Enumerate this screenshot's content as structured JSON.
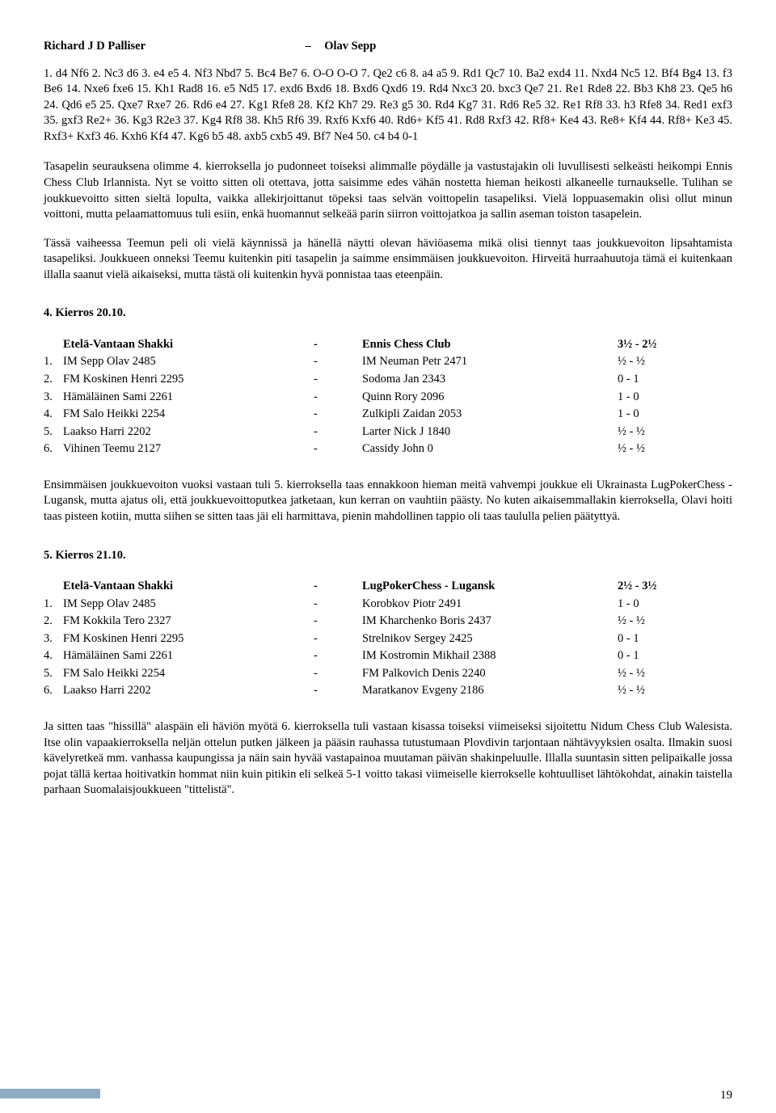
{
  "pgn": {
    "white": "Richard J D Palliser",
    "dash": "–",
    "black": "Olav Sepp",
    "moves": "1. d4 Nf6 2. Nc3 d6 3. e4 e5 4. Nf3 Nbd7 5. Bc4 Be7 6. O-O O-O 7. Qe2 c6 8. a4 a5 9. Rd1 Qc7 10. Ba2 exd4 11. Nxd4 Nc5 12. Bf4 Bg4 13. f3 Be6 14. Nxe6 fxe6 15. Kh1 Rad8 16. e5 Nd5 17. exd6 Bxd6 18. Bxd6 Qxd6 19. Rd4 Nxc3 20. bxc3 Qe7 21. Re1 Rde8 22. Bb3 Kh8 23. Qe5 h6 24. Qd6 e5 25. Qxe7 Rxe7 26. Rd6 e4 27. Kg1 Rfe8 28. Kf2 Kh7 29. Re3 g5 30. Rd4 Kg7 31. Rd6 Re5 32. Re1 Rf8 33. h3 Rfe8 34. Red1 exf3 35. gxf3 Re2+ 36. Kg3 R2e3 37. Kg4 Rf8 38. Kh5 Rf6 39. Rxf6 Kxf6 40. Rd6+ Kf5 41. Rd8 Rxf3 42. Rf8+ Ke4 43. Re8+ Kf4 44. Rf8+ Ke3 45. Rxf3+ Kxf3 46. Kxh6 Kf4 47. Kg6 b5 48. axb5 cxb5 49. Bf7 Ne4 50. c4 b4 0-1"
  },
  "commentary1": "Tasapelin seurauksena olimme 4. kierroksella jo pudonneet toiseksi alimmalle pöydälle ja vastustajakin oli luvullisesti selkeästi heikompi Ennis Chess Club Irlannista. Nyt se voitto sitten oli otettava, jotta saisimme edes vähän nostetta hieman heikosti alkaneelle turnaukselle. Tulihan se joukkuevoitto sitten sieltä lopulta, vaikka allekirjoittanut töpeksi taas selvän voittopelin tasapeliksi. Vielä loppuasemakin olisi ollut minun voittoni, mutta pelaamattomuus tuli esiin, enkä huomannut selkeää parin siirron voittojatkoa ja sallin aseman toiston tasapelein.",
  "commentary2": "Tässä vaiheessa Teemun peli oli vielä käynnissä ja hänellä näytti olevan häviöasema mikä olisi tiennyt taas joukkuevoiton lipsahtamista tasapeliksi. Joukkueen onneksi Teemu kuitenkin piti tasapelin ja saimme ensimmäisen joukkuevoiton. Hirveitä hurraahuutoja tämä ei kuitenkaan illalla saanut vielä aikaiseksi, mutta tästä oli kuitenkin hyvä ponnistaa taas eteenpäin.",
  "round4": {
    "title": "4. Kierros 20.10.",
    "teamA": "Etelä-Vantaan Shakki",
    "dash": "-",
    "teamB": "Ennis Chess Club",
    "score": "3½ - 2½",
    "rows": [
      {
        "n": "1.",
        "a": "IM Sepp Olav 2485",
        "b": "IM Neuman Petr 2471",
        "s": "½ - ½"
      },
      {
        "n": "2.",
        "a": "FM Koskinen Henri 2295",
        "b": "Sodoma Jan 2343",
        "s": "0 - 1"
      },
      {
        "n": "3.",
        "a": "Hämäläinen Sami 2261",
        "b": "Quinn Rory 2096",
        "s": "1 - 0"
      },
      {
        "n": "4.",
        "a": "FM Salo Heikki 2254",
        "b": "Zulkipli Zaidan 2053",
        "s": "1 - 0"
      },
      {
        "n": "5.",
        "a": "Laakso Harri 2202",
        "b": "Larter Nick J 1840",
        "s": "½ - ½"
      },
      {
        "n": "6.",
        "a": "Vihinen Teemu 2127",
        "b": "Cassidy John 0",
        "s": "½ - ½"
      }
    ]
  },
  "commentary3": "Ensimmäisen joukkuevoiton vuoksi vastaan tuli 5. kierroksella taas ennakkoon hieman meitä vahvempi joukkue eli Ukrainasta LugPokerChess - Lugansk, mutta ajatus oli, että joukkuevoittoputkea jatketaan, kun kerran on vauhtiin päästy. No kuten aikaisemmallakin kierroksella, Olavi hoiti taas pisteen kotiin, mutta siihen se sitten taas jäi eli harmittava, pienin mahdollinen tappio oli taas taululla pelien päätyttyä.",
  "round5": {
    "title": "5. Kierros 21.10.",
    "teamA": "Etelä-Vantaan Shakki",
    "dash": "-",
    "teamB": "LugPokerChess - Lugansk",
    "score": "2½ - 3½",
    "rows": [
      {
        "n": "1.",
        "a": "IM Sepp Olav 2485",
        "b": "Korobkov Piotr 2491",
        "s": "1 - 0"
      },
      {
        "n": "2.",
        "a": "FM Kokkila Tero 2327",
        "b": "IM Kharchenko Boris 2437",
        "s": "½ - ½"
      },
      {
        "n": "3.",
        "a": "FM Koskinen Henri 2295",
        "b": "Strelnikov Sergey 2425",
        "s": "0 - 1"
      },
      {
        "n": "4.",
        "a": "Hämäläinen Sami 2261",
        "b": "IM Kostromin Mikhail 2388",
        "s": "0 - 1"
      },
      {
        "n": "5.",
        "a": "FM Salo Heikki 2254",
        "b": "FM Palkovich Denis 2240",
        "s": "½ - ½"
      },
      {
        "n": "6.",
        "a": "Laakso Harri 2202",
        "b": "Maratkanov Evgeny 2186",
        "s": "½ - ½"
      }
    ]
  },
  "commentary4": "Ja sitten taas \"hissillä\" alaspäin eli häviön myötä 6. kierroksella tuli vastaan kisassa toiseksi viimeiseksi sijoitettu Nidum Chess Club Walesista. Itse olin vapaakierroksella neljän ottelun putken jälkeen ja pääsin rauhassa tutustumaan Plovdivin tarjontaan nähtävyyksien osalta. Ilmakin suosi kävelyretkeä mm. vanhassa kaupungissa ja näin sain hyvää vastapainoa muutaman päivän shakinpeluulle. Illalla suuntasin sitten pelipaikalle jossa pojat tällä kertaa hoitivatkin hommat niin kuin pitikin eli selkeä 5-1 voitto takasi viimeiselle kierrokselle kohtuulliset lähtökohdat, ainakin taistella parhaan Suomalaisjoukkueen \"tittelistä\".",
  "pageNum": "19"
}
